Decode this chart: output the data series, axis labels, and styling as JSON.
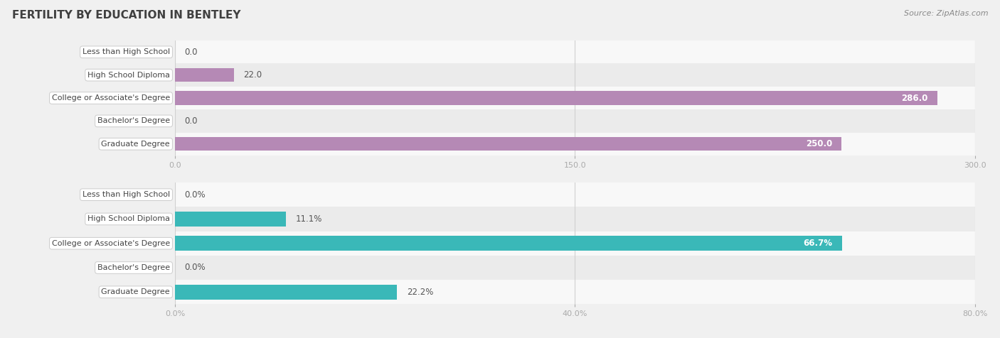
{
  "title": "FERTILITY BY EDUCATION IN BENTLEY",
  "source": "Source: ZipAtlas.com",
  "top_chart": {
    "categories": [
      "Less than High School",
      "High School Diploma",
      "College or Associate's Degree",
      "Bachelor's Degree",
      "Graduate Degree"
    ],
    "values": [
      0.0,
      22.0,
      286.0,
      0.0,
      250.0
    ],
    "xlim": [
      0,
      300
    ],
    "xticks": [
      0.0,
      150.0,
      300.0
    ],
    "xtick_labels": [
      "0.0",
      "150.0",
      "300.0"
    ],
    "bar_color": "#b589b5",
    "value_labels": [
      "0.0",
      "22.0",
      "286.0",
      "0.0",
      "250.0"
    ],
    "value_inside": [
      false,
      false,
      true,
      false,
      true
    ]
  },
  "bottom_chart": {
    "categories": [
      "Less than High School",
      "High School Diploma",
      "College or Associate's Degree",
      "Bachelor's Degree",
      "Graduate Degree"
    ],
    "values": [
      0.0,
      11.1,
      66.7,
      0.0,
      22.2
    ],
    "xlim": [
      0,
      80
    ],
    "xticks": [
      0.0,
      40.0,
      80.0
    ],
    "xtick_labels": [
      "0.0%",
      "40.0%",
      "80.0%"
    ],
    "bar_color": "#3ab8b8",
    "value_labels": [
      "0.0%",
      "11.1%",
      "66.7%",
      "0.0%",
      "22.2%"
    ],
    "value_inside": [
      false,
      false,
      true,
      false,
      false
    ]
  },
  "bar_height": 0.6,
  "background_color": "#f0f0f0",
  "row_bg_even": "#f8f8f8",
  "row_bg_odd": "#ebebeb",
  "title_color": "#404040",
  "grid_color": "#d0d0d0",
  "label_fontsize": 8.0,
  "value_fontsize": 8.5,
  "tick_fontsize": 8.0
}
